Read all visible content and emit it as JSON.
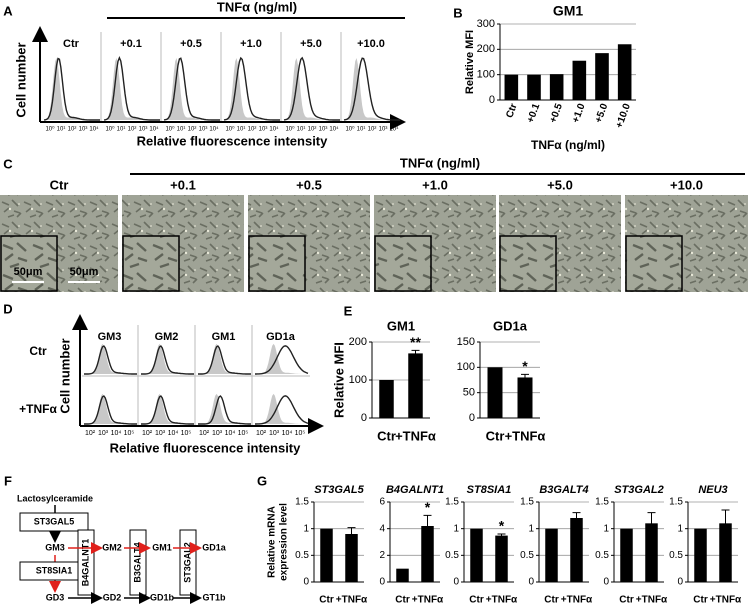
{
  "panel_a": {
    "label": "A",
    "header": "TNFα (ng/ml)",
    "columns": [
      "Ctr",
      "+0.1",
      "+0.5",
      "+1.0",
      "+5.0",
      "+10.0"
    ],
    "tick_labels": [
      "10⁰",
      "10¹",
      "10²",
      "10³",
      "10⁴"
    ],
    "y_label": "Cell number",
    "x_label": "Relative fluorescence intensity"
  },
  "panel_c": {
    "label": "C",
    "header": "TNFα (ng/ml)",
    "columns": [
      "Ctr",
      "+0.1",
      "+0.5",
      "+1.0",
      "+5.0",
      "+10.0"
    ],
    "scale_labels": [
      "50μm",
      "50μm"
    ]
  },
  "panel_d": {
    "label": "D",
    "columns": [
      "GM3",
      "GM2",
      "GM1",
      "GD1a"
    ],
    "rows": [
      "Ctr",
      "+TNFα"
    ],
    "tick_labels": [
      "10²",
      "10³",
      "10⁴",
      "10⁵"
    ],
    "y_label": "Cell number",
    "x_label": "Relative fluorescence intensity"
  },
  "panel_f": {
    "label": "F",
    "start": "Lactosylceramide",
    "enzymes": [
      "ST3GAL5",
      "ST8SIA1",
      "B4GALNT1",
      "B3GALT4",
      "ST3GAL2"
    ],
    "top_row": [
      "GM3",
      "GM2",
      "GM1",
      "GD1a"
    ],
    "bottom_row": [
      "GD3",
      "GD2",
      "GD1b",
      "GT1b"
    ]
  },
  "chart_data": [
    {
      "type": "bar",
      "panel_label": "B",
      "title": "GM1",
      "y_label": [
        "Relative MFI"
      ],
      "x_label": "TNFα (ng/ml)",
      "categories": [
        "Ctr",
        "+0.1",
        "+0.5",
        "+1.0",
        "+5.0",
        "+10.0"
      ],
      "values": [
        100,
        100,
        102,
        155,
        185,
        220
      ],
      "color": "#000000",
      "ylim": [
        0,
        300
      ],
      "yticks": [
        0,
        100,
        200,
        300
      ],
      "grid": true
    },
    {
      "type": "bar",
      "panel_label": "E",
      "title": "GM1",
      "y_label": [
        "Relative MFI"
      ],
      "categories": [
        "Ctr",
        "+TNFα"
      ],
      "values": [
        100,
        170
      ],
      "errors": [
        null,
        8
      ],
      "annotation": "**",
      "color": "#000000",
      "ylim": [
        0,
        200
      ],
      "yticks": [
        0,
        100,
        200
      ],
      "grid": true
    },
    {
      "type": "bar",
      "title": "GD1a",
      "categories": [
        "Ctr",
        "+TNFα"
      ],
      "values": [
        100,
        80
      ],
      "errors": [
        null,
        6
      ],
      "annotation": "*",
      "color": "#000000",
      "ylim": [
        0,
        150
      ],
      "yticks": [
        0,
        50,
        100,
        150
      ],
      "grid": true
    },
    {
      "type": "bar",
      "panel_label": "G",
      "title": "ST3GAL5",
      "y_label": [
        "Relative mRNA",
        "expression level"
      ],
      "categories": [
        "Ctr",
        "+TNFα"
      ],
      "values": [
        1,
        0.9
      ],
      "errors": [
        null,
        0.12
      ],
      "color": "#000000",
      "ylim": [
        0,
        1.5
      ],
      "yticks": [
        0,
        0.5,
        1,
        1.5
      ],
      "grid": true
    },
    {
      "type": "bar",
      "title": "B4GALNT1",
      "categories": [
        "Ctr",
        "+TNFα"
      ],
      "values": [
        1,
        4.2
      ],
      "errors": [
        null,
        0.8
      ],
      "annotation": "*",
      "color": "#000000",
      "ylim": [
        0,
        6
      ],
      "yticks": [
        0,
        2,
        4,
        6
      ],
      "grid": true
    },
    {
      "type": "bar",
      "title": "ST8SIA1",
      "categories": [
        "Ctr",
        "+TNFα"
      ],
      "values": [
        1,
        0.87
      ],
      "errors": [
        null,
        0.03
      ],
      "annotation": "*",
      "color": "#000000",
      "ylim": [
        0,
        1.5
      ],
      "yticks": [
        0,
        0.5,
        1,
        1.5
      ],
      "grid": true
    },
    {
      "type": "bar",
      "title": "B3GALT4",
      "categories": [
        "Ctr",
        "+TNFα"
      ],
      "values": [
        1,
        1.2
      ],
      "errors": [
        null,
        0.1
      ],
      "color": "#000000",
      "ylim": [
        0,
        1.5
      ],
      "yticks": [
        0,
        0.5,
        1,
        1.5
      ],
      "grid": true
    },
    {
      "type": "bar",
      "title": "ST3GAL2",
      "categories": [
        "Ctr",
        "+TNFα"
      ],
      "values": [
        1,
        1.1
      ],
      "errors": [
        null,
        0.2
      ],
      "color": "#000000",
      "ylim": [
        0,
        1.5
      ],
      "yticks": [
        0,
        0.5,
        1,
        1.5
      ],
      "grid": true
    },
    {
      "type": "bar",
      "title": "NEU3",
      "categories": [
        "Ctr",
        "+TNFα"
      ],
      "values": [
        1,
        1.1
      ],
      "errors": [
        null,
        0.25
      ],
      "color": "#000000",
      "ylim": [
        0,
        1.5
      ],
      "yticks": [
        0,
        0.5,
        1,
        1.5
      ],
      "grid": true
    }
  ]
}
